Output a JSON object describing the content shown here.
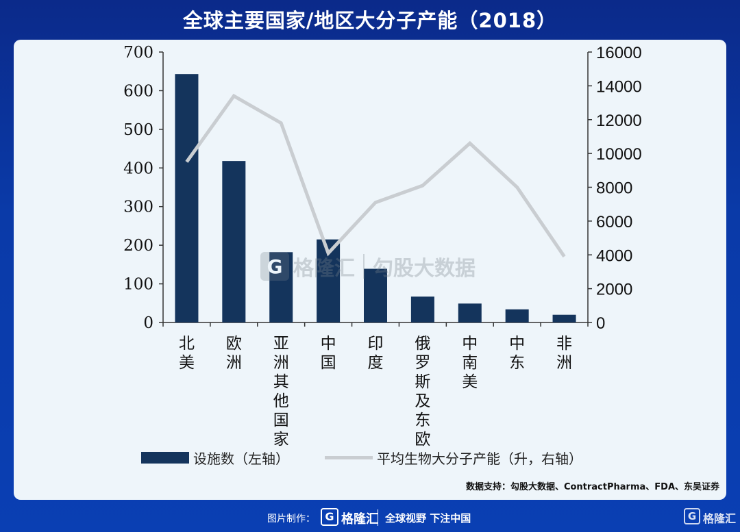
{
  "title": "全球主要国家/地区大分子产能（2018）",
  "chart_data": {
    "type": "bar+line",
    "categories": [
      "北美",
      "欧洲",
      "亚洲其他国家",
      "中国",
      "印度",
      "俄罗斯及东欧",
      "中南美",
      "中东",
      "非洲"
    ],
    "series": [
      {
        "name": "设施数（左轴）",
        "type": "bar",
        "axis": "left",
        "color": "#14345c",
        "values": [
          643,
          418,
          182,
          215,
          139,
          67,
          49,
          34,
          20
        ]
      },
      {
        "name": "平均生物大分子产能（升，右轴）",
        "type": "line",
        "axis": "right",
        "color": "#c9cdd1",
        "values": [
          9500,
          13400,
          11800,
          4100,
          7100,
          8100,
          10600,
          8000,
          3900
        ]
      }
    ],
    "left_axis": {
      "range": [
        0,
        700
      ],
      "ticks": [
        "0",
        "100",
        "200",
        "300",
        "400",
        "500",
        "600",
        "700"
      ]
    },
    "right_axis": {
      "range": [
        0,
        16000
      ],
      "ticks": [
        "0",
        "2000",
        "4000",
        "6000",
        "8000",
        "10000",
        "12000",
        "14000",
        "16000"
      ]
    },
    "legend_position": "bottom",
    "grid": false
  },
  "legend": {
    "bar_label": "设施数（左轴）",
    "line_label": "平均生物大分子产能（升，右轴）"
  },
  "source": "数据支持：勾股大数据、ContractPharma、FDA、东吴证券",
  "watermark": {
    "logo": "G",
    "brand": "格隆汇",
    "text": "勾股大数据"
  },
  "footer": {
    "made_by": "图片制作：",
    "logo": "G",
    "brand": "格隆汇",
    "slogan": "全球视野 下注中国",
    "corner_logo": "G",
    "corner_brand": "格隆汇"
  },
  "colors": {
    "background": "#0a3aa8",
    "panel": "#eef5fa",
    "bar": "#14345c",
    "line": "#c9cdd1"
  }
}
